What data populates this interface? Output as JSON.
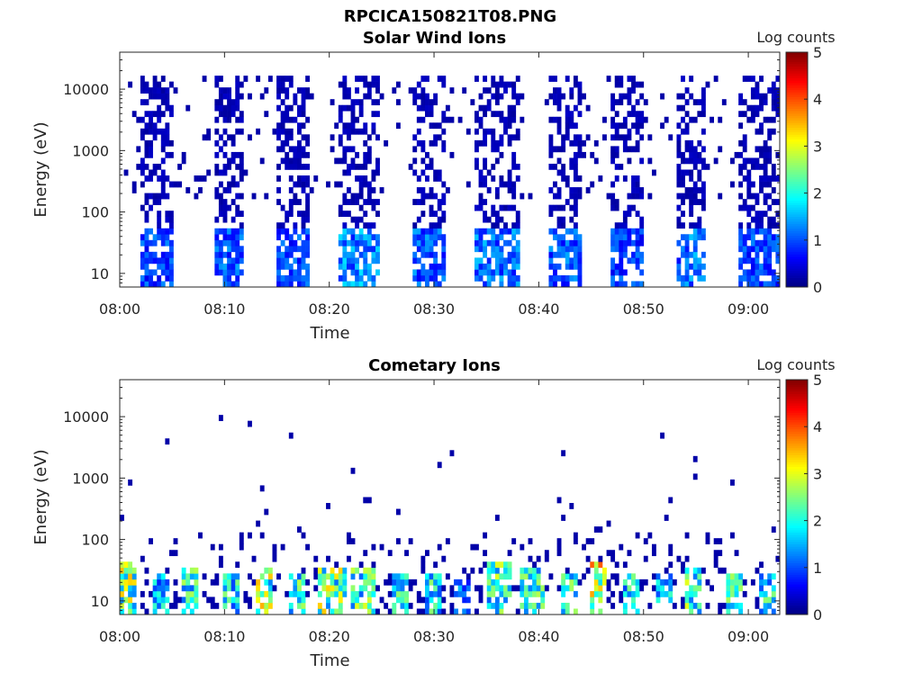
{
  "figure": {
    "title": "RPCICA150821T08.PNG"
  },
  "chart_data": [
    {
      "type": "heatmap",
      "title": "Solar Wind Ions",
      "xlabel": "Time",
      "ylabel": "Energy (eV)",
      "y_scale": "log",
      "xlim": [
        "08:00",
        "09:03"
      ],
      "ylim": [
        6,
        40000
      ],
      "x_ticks": [
        "08:00",
        "08:10",
        "08:20",
        "08:30",
        "08:40",
        "08:50",
        "09:00"
      ],
      "y_ticks": [
        "10",
        "100",
        "1000",
        "10000"
      ],
      "colorbar": {
        "label": "Log counts",
        "ticks": [
          "0",
          "1",
          "2",
          "3",
          "4",
          "5"
        ],
        "range": [
          0,
          5
        ],
        "colormap": "jet"
      },
      "bursts": [
        {
          "t_start": "08:02",
          "t_end": "08:05",
          "peak_log_counts": 1.3,
          "max_energy_ev": 15000
        },
        {
          "t_start": "08:09",
          "t_end": "08:12",
          "peak_log_counts": 1.5,
          "max_energy_ev": 15000
        },
        {
          "t_start": "08:15",
          "t_end": "08:18",
          "peak_log_counts": 1.3,
          "max_energy_ev": 15000
        },
        {
          "t_start": "08:21",
          "t_end": "08:25",
          "peak_log_counts": 1.8,
          "max_energy_ev": 15000
        },
        {
          "t_start": "08:28",
          "t_end": "08:31",
          "peak_log_counts": 1.5,
          "max_energy_ev": 15000
        },
        {
          "t_start": "08:34",
          "t_end": "08:38",
          "peak_log_counts": 1.6,
          "max_energy_ev": 15000
        },
        {
          "t_start": "08:41",
          "t_end": "08:44",
          "peak_log_counts": 1.5,
          "max_energy_ev": 15000
        },
        {
          "t_start": "08:47",
          "t_end": "08:50",
          "peak_log_counts": 1.3,
          "max_energy_ev": 15000
        },
        {
          "t_start": "08:53",
          "t_end": "08:56",
          "peak_log_counts": 1.6,
          "max_energy_ev": 15000
        },
        {
          "t_start": "08:59",
          "t_end": "09:03",
          "peak_log_counts": 1.3,
          "max_energy_ev": 15000
        }
      ]
    },
    {
      "type": "heatmap",
      "title": "Cometary Ions",
      "xlabel": "Time",
      "ylabel": "Energy (eV)",
      "y_scale": "log",
      "xlim": [
        "08:00",
        "09:03"
      ],
      "ylim": [
        6,
        40000
      ],
      "x_ticks": [
        "08:00",
        "08:10",
        "08:20",
        "08:30",
        "08:40",
        "08:50",
        "09:00"
      ],
      "y_ticks": [
        "10",
        "100",
        "1000",
        "10000"
      ],
      "colorbar": {
        "label": "Log counts",
        "ticks": [
          "0",
          "1",
          "2",
          "3",
          "4",
          "5"
        ],
        "range": [
          0,
          5
        ],
        "colormap": "jet"
      },
      "bursts": [
        {
          "t_start": "08:00",
          "t_end": "08:01",
          "peak_log_counts": 3.5,
          "max_energy_ev": 40
        },
        {
          "t_start": "08:03",
          "t_end": "08:04",
          "peak_log_counts": 2.2,
          "max_energy_ev": 30
        },
        {
          "t_start": "08:06",
          "t_end": "08:07",
          "peak_log_counts": 2.8,
          "max_energy_ev": 35
        },
        {
          "t_start": "08:10",
          "t_end": "08:11",
          "peak_log_counts": 2.6,
          "max_energy_ev": 30
        },
        {
          "t_start": "08:13",
          "t_end": "08:14",
          "peak_log_counts": 3.6,
          "max_energy_ev": 35
        },
        {
          "t_start": "08:16",
          "t_end": "08:17",
          "peak_log_counts": 2.8,
          "max_energy_ev": 30
        },
        {
          "t_start": "08:19",
          "t_end": "08:21",
          "peak_log_counts": 3.4,
          "max_energy_ev": 35
        },
        {
          "t_start": "08:22",
          "t_end": "08:24",
          "peak_log_counts": 3.0,
          "max_energy_ev": 35
        },
        {
          "t_start": "08:26",
          "t_end": "08:27",
          "peak_log_counts": 2.6,
          "max_energy_ev": 30
        },
        {
          "t_start": "08:29",
          "t_end": "08:30",
          "peak_log_counts": 2.6,
          "max_energy_ev": 30
        },
        {
          "t_start": "08:32",
          "t_end": "08:33",
          "peak_log_counts": 1.6,
          "max_energy_ev": 25
        },
        {
          "t_start": "08:35",
          "t_end": "08:37",
          "peak_log_counts": 3.0,
          "max_energy_ev": 40
        },
        {
          "t_start": "08:38",
          "t_end": "08:40",
          "peak_log_counts": 2.8,
          "max_energy_ev": 35
        },
        {
          "t_start": "08:42",
          "t_end": "08:43",
          "peak_log_counts": 2.8,
          "max_energy_ev": 30
        },
        {
          "t_start": "08:45",
          "t_end": "08:46",
          "peak_log_counts": 4.2,
          "max_energy_ev": 45
        },
        {
          "t_start": "08:48",
          "t_end": "08:49",
          "peak_log_counts": 2.6,
          "max_energy_ev": 30
        },
        {
          "t_start": "08:51",
          "t_end": "08:52",
          "peak_log_counts": 2.6,
          "max_energy_ev": 30
        },
        {
          "t_start": "08:54",
          "t_end": "08:55",
          "peak_log_counts": 3.0,
          "max_energy_ev": 35
        },
        {
          "t_start": "08:58",
          "t_end": "08:59",
          "peak_log_counts": 2.8,
          "max_energy_ev": 30
        },
        {
          "t_start": "09:01",
          "t_end": "09:02",
          "peak_log_counts": 2.6,
          "max_energy_ev": 30
        }
      ]
    }
  ]
}
